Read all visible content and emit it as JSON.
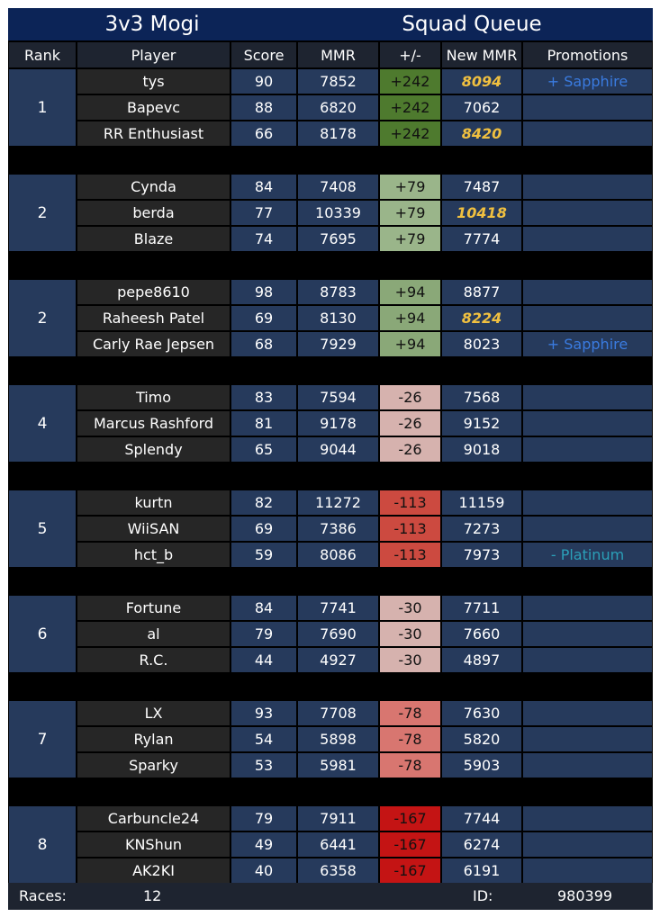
{
  "title": {
    "left": "3v3 Mogi",
    "right": "Squad Queue"
  },
  "columns": {
    "rank": "Rank",
    "player": "Player",
    "score": "Score",
    "mmr": "MMR",
    "delta": "+/-",
    "new_mmr": "New MMR",
    "promotions": "Promotions"
  },
  "colors": {
    "delta_pos_high": "#4e7a2e",
    "delta_pos_low": "#9ab58a",
    "delta_pos_mid": "#8aa878",
    "delta_neg_low": "#d6b2ae",
    "delta_neg_mid": "#d86c64",
    "delta_neg_high": "#c41414",
    "highlight_text": "#f0c040",
    "promo_up": "#3a7be0",
    "promo_down": "#2ba0b8"
  },
  "teams": [
    {
      "rank": "1",
      "delta": "+242",
      "delta_color": "#4e7a2e",
      "players": [
        {
          "name": "tys",
          "score": "90",
          "mmr": "7852",
          "new_mmr": "8094",
          "highlight": true,
          "promotion": "+ Sapphire",
          "promo_type": "up"
        },
        {
          "name": "Bapevc",
          "score": "88",
          "mmr": "6820",
          "new_mmr": "7062",
          "highlight": false,
          "promotion": "",
          "promo_type": ""
        },
        {
          "name": "RR Enthusiast",
          "score": "66",
          "mmr": "8178",
          "new_mmr": "8420",
          "highlight": true,
          "promotion": "",
          "promo_type": ""
        }
      ]
    },
    {
      "rank": "2",
      "delta": "+79",
      "delta_color": "#9ab58a",
      "players": [
        {
          "name": "Cynda",
          "score": "84",
          "mmr": "7408",
          "new_mmr": "7487",
          "highlight": false,
          "promotion": "",
          "promo_type": ""
        },
        {
          "name": "berda",
          "score": "77",
          "mmr": "10339",
          "new_mmr": "10418",
          "highlight": true,
          "promotion": "",
          "promo_type": ""
        },
        {
          "name": "Blaze",
          "score": "74",
          "mmr": "7695",
          "new_mmr": "7774",
          "highlight": false,
          "promotion": "",
          "promo_type": ""
        }
      ]
    },
    {
      "rank": "2",
      "delta": "+94",
      "delta_color": "#8aa878",
      "players": [
        {
          "name": "pepe8610",
          "score": "98",
          "mmr": "8783",
          "new_mmr": "8877",
          "highlight": false,
          "promotion": "",
          "promo_type": ""
        },
        {
          "name": "Raheesh Patel",
          "score": "69",
          "mmr": "8130",
          "new_mmr": "8224",
          "highlight": true,
          "promotion": "",
          "promo_type": ""
        },
        {
          "name": "Carly Rae Jepsen",
          "score": "68",
          "mmr": "7929",
          "new_mmr": "8023",
          "highlight": false,
          "promotion": "+ Sapphire",
          "promo_type": "up"
        }
      ]
    },
    {
      "rank": "4",
      "delta": "-26",
      "delta_color": "#d6b2ae",
      "players": [
        {
          "name": "Timo",
          "score": "83",
          "mmr": "7594",
          "new_mmr": "7568",
          "highlight": false,
          "promotion": "",
          "promo_type": ""
        },
        {
          "name": "Marcus Rashford",
          "score": "81",
          "mmr": "9178",
          "new_mmr": "9152",
          "highlight": false,
          "promotion": "",
          "promo_type": ""
        },
        {
          "name": "Splendy",
          "score": "65",
          "mmr": "9044",
          "new_mmr": "9018",
          "highlight": false,
          "promotion": "",
          "promo_type": ""
        }
      ]
    },
    {
      "rank": "5",
      "delta": "-113",
      "delta_color": "#cc4a40",
      "players": [
        {
          "name": "kurtn",
          "score": "82",
          "mmr": "11272",
          "new_mmr": "11159",
          "highlight": false,
          "promotion": "",
          "promo_type": ""
        },
        {
          "name": "WiiSAN",
          "score": "69",
          "mmr": "7386",
          "new_mmr": "7273",
          "highlight": false,
          "promotion": "",
          "promo_type": ""
        },
        {
          "name": "hct_b",
          "score": "59",
          "mmr": "8086",
          "new_mmr": "7973",
          "highlight": false,
          "promotion": "- Platinum",
          "promo_type": "down"
        }
      ]
    },
    {
      "rank": "6",
      "delta": "-30",
      "delta_color": "#d6b2ae",
      "players": [
        {
          "name": "Fortune",
          "score": "84",
          "mmr": "7741",
          "new_mmr": "7711",
          "highlight": false,
          "promotion": "",
          "promo_type": ""
        },
        {
          "name": "al",
          "score": "79",
          "mmr": "7690",
          "new_mmr": "7660",
          "highlight": false,
          "promotion": "",
          "promo_type": ""
        },
        {
          "name": "R.C.",
          "score": "44",
          "mmr": "4927",
          "new_mmr": "4897",
          "highlight": false,
          "promotion": "",
          "promo_type": ""
        }
      ]
    },
    {
      "rank": "7",
      "delta": "-78",
      "delta_color": "#d87670",
      "players": [
        {
          "name": "LX",
          "score": "93",
          "mmr": "7708",
          "new_mmr": "7630",
          "highlight": false,
          "promotion": "",
          "promo_type": ""
        },
        {
          "name": "Rylan",
          "score": "54",
          "mmr": "5898",
          "new_mmr": "5820",
          "highlight": false,
          "promotion": "",
          "promo_type": ""
        },
        {
          "name": "Sparky",
          "score": "53",
          "mmr": "5981",
          "new_mmr": "5903",
          "highlight": false,
          "promotion": "",
          "promo_type": ""
        }
      ]
    },
    {
      "rank": "8",
      "delta": "-167",
      "delta_color": "#c41414",
      "players": [
        {
          "name": "Carbuncle24",
          "score": "79",
          "mmr": "7911",
          "new_mmr": "7744",
          "highlight": false,
          "promotion": "",
          "promo_type": ""
        },
        {
          "name": "KNShun",
          "score": "49",
          "mmr": "6441",
          "new_mmr": "6274",
          "highlight": false,
          "promotion": "",
          "promo_type": ""
        },
        {
          "name": "AK2KI",
          "score": "40",
          "mmr": "6358",
          "new_mmr": "6191",
          "highlight": false,
          "promotion": "",
          "promo_type": ""
        }
      ]
    }
  ],
  "footer": {
    "races_label": "Races:",
    "races_value": "12",
    "id_label": "ID:",
    "id_value": "980399"
  }
}
